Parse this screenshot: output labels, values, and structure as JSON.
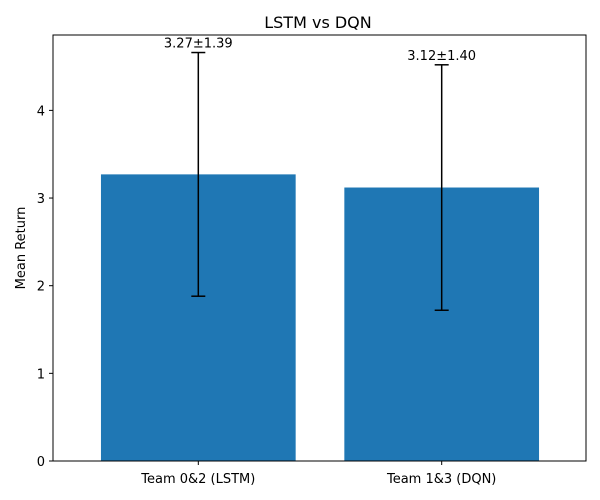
{
  "chart_data": {
    "type": "bar",
    "title": "LSTM vs DQN",
    "xlabel": "",
    "ylabel": "Mean Return",
    "categories": [
      "Team 0&2 (LSTM)",
      "Team 1&3 (DQN)"
    ],
    "values": [
      3.27,
      3.12
    ],
    "errors": [
      1.39,
      1.4
    ],
    "data_labels": [
      "3.27±1.39",
      "3.12±1.40"
    ],
    "ylim": [
      0,
      4.86
    ],
    "yticks": [
      0,
      1,
      2,
      3,
      4
    ],
    "ytick_labels": [
      "0",
      "1",
      "2",
      "3",
      "4"
    ],
    "grid": false,
    "legend": "none",
    "colors": {
      "bar": "#1f77b4",
      "error": "#000000"
    }
  }
}
